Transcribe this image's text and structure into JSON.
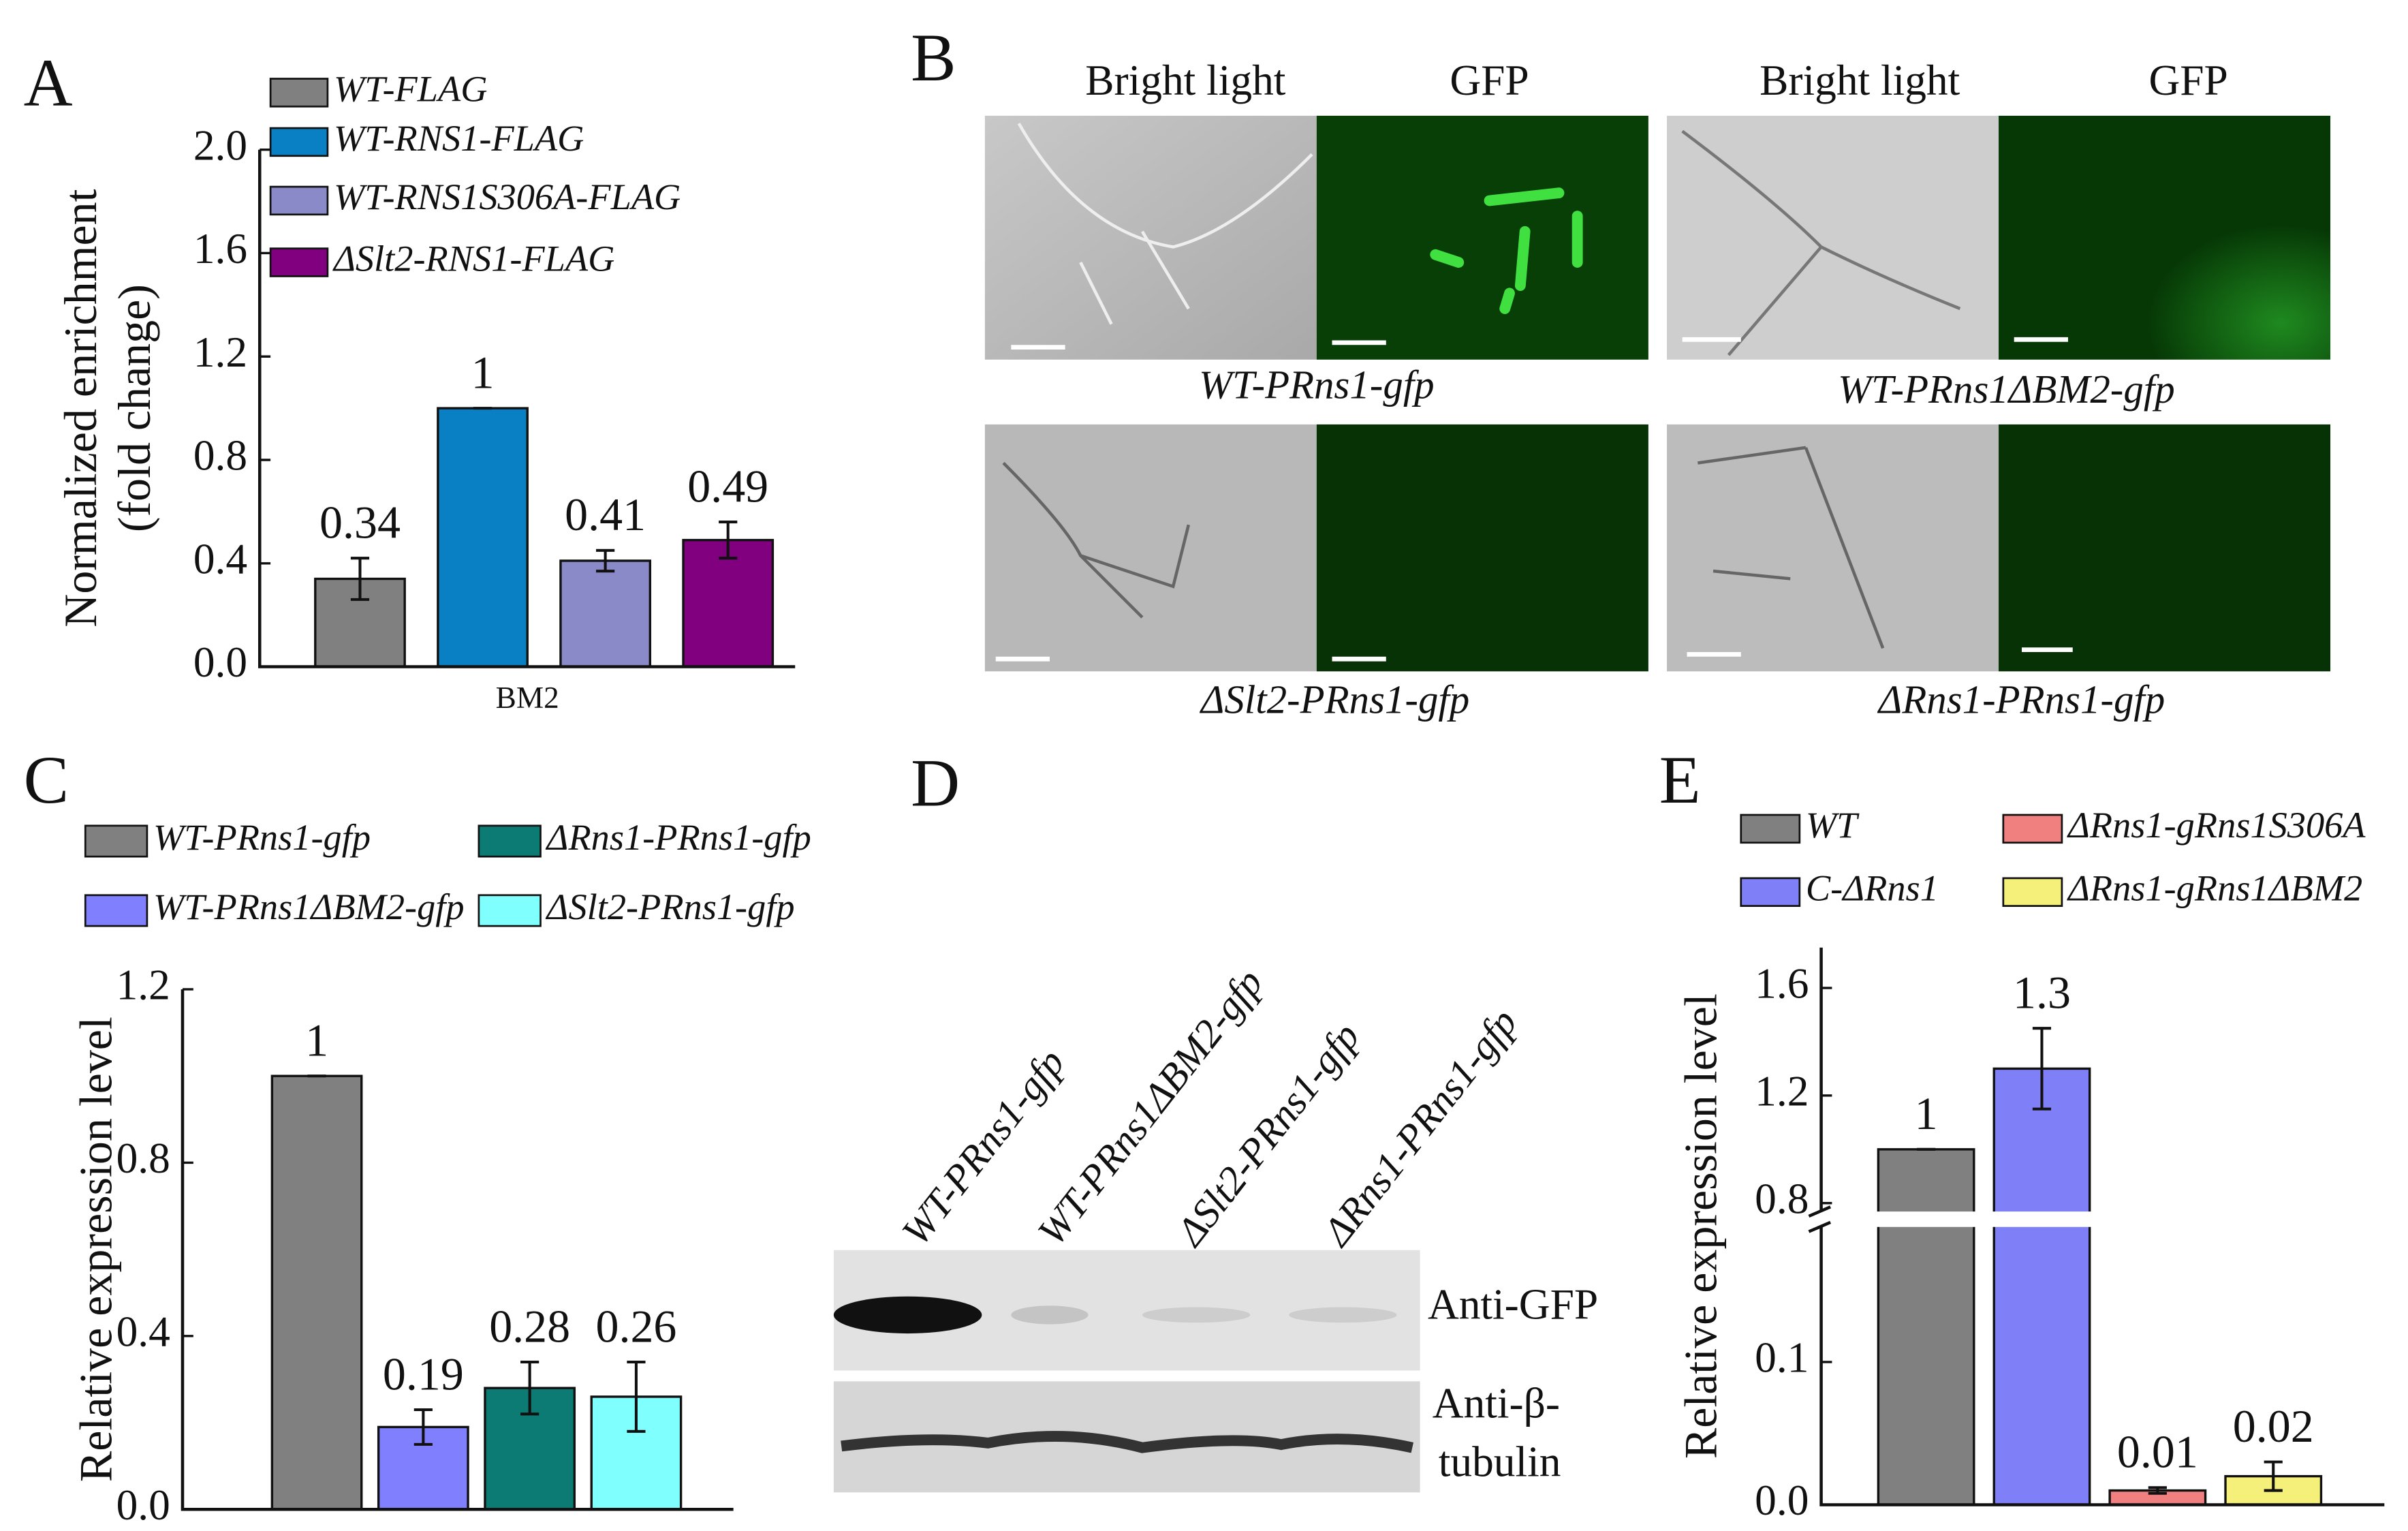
{
  "chart_data": [
    {
      "type": "bar",
      "panel": "A",
      "ylabel": [
        "Normalized enrichment",
        "(fold change)"
      ],
      "categories": [
        "BM2"
      ],
      "ylim": [
        0,
        2.0
      ],
      "yticks": [
        {
          "value": 0,
          "label": "0.0"
        },
        0.4,
        0.8,
        1.2,
        1.6,
        {
          "value": 2,
          "label": "2.0"
        }
      ],
      "series": [
        {
          "name": "WT-FLAG",
          "color": "#808080",
          "values": [
            0.34
          ],
          "errors": [
            0.08
          ]
        },
        {
          "name": "WT-RNS1-FLAG",
          "color": "#0a80c4",
          "values": [
            1
          ],
          "errors": [
            0
          ]
        },
        {
          "name": "WT-RNS1S306A-FLAG",
          "color": "#8a8ac8",
          "values": [
            0.41
          ],
          "errors": [
            0.04
          ]
        },
        {
          "name": "ΔSlt2-RNS1-FLAG",
          "color": "#800080",
          "values": [
            0.49
          ],
          "errors": [
            0.07
          ]
        }
      ]
    },
    {
      "type": "bar",
      "panel": "C",
      "ylabel": [
        "Relative expression level"
      ],
      "ylim": [
        0,
        1.2
      ],
      "yticks": [
        {
          "value": 0,
          "label": "0.0"
        },
        0.4,
        0.8,
        1.2
      ],
      "series": [
        {
          "name": "WT-PRns1-gfp",
          "color": "#808080",
          "values": [
            1
          ],
          "errors": [
            0
          ]
        },
        {
          "name": "WT-PRns1ΔBM2-gfp",
          "color": "#8080ff",
          "values": [
            0.19
          ],
          "errors": [
            0.04
          ]
        },
        {
          "name": "ΔRns1-PRns1-gfp",
          "color": "#0b7b73",
          "values": [
            0.28
          ],
          "errors": [
            0.06
          ]
        },
        {
          "name": "ΔSlt2-PRns1-gfp",
          "color": "#80ffff",
          "values": [
            0.26
          ],
          "errors": [
            0.08
          ]
        }
      ]
    },
    {
      "type": "bar",
      "panel": "E",
      "ylabel": [
        "Relative expression level"
      ],
      "ylim": [
        0,
        1.75
      ],
      "y_break": [
        0.2,
        0.74
      ],
      "yticks": [
        {
          "value": 0,
          "label": "0.0"
        },
        0.1,
        0.8,
        1.2,
        1.6
      ],
      "series": [
        {
          "name": "WT",
          "color": "#808080",
          "values": [
            1
          ],
          "errors": [
            0
          ]
        },
        {
          "name": "C-ΔRns1",
          "color": "#7f7ff7",
          "values": [
            1.3
          ],
          "errors": [
            0.15
          ]
        },
        {
          "name": "ΔRns1-gRns1S306A",
          "color": "#f08080",
          "values": [
            0.01
          ],
          "errors": [
            0.002
          ]
        },
        {
          "name": "ΔRns1-gRns1ΔBM2",
          "color": "#f5f07a",
          "values": [
            0.02
          ],
          "errors": [
            0.01
          ]
        }
      ]
    }
  ],
  "microscopy": {
    "panel": "B",
    "column_headers": [
      "Bright light",
      "GFP",
      "Bright light",
      "GFP"
    ],
    "captions": [
      "WT-PRns1-gfp",
      "WT-PRns1ΔBM2-gfp",
      "ΔSlt2-PRns1-gfp",
      "ΔRns1-PRns1-gfp"
    ]
  },
  "blot": {
    "panel": "D",
    "lanes": [
      "WT-PRns1-gfp",
      "WT-PRns1ΔBM2-gfp",
      "ΔSlt2-PRns1-gfp",
      "ΔRns1-PRns1-gfp"
    ],
    "anti_gfp": "Anti-GFP",
    "anti_tubulin": [
      "Anti-β-",
      "tubulin"
    ]
  }
}
